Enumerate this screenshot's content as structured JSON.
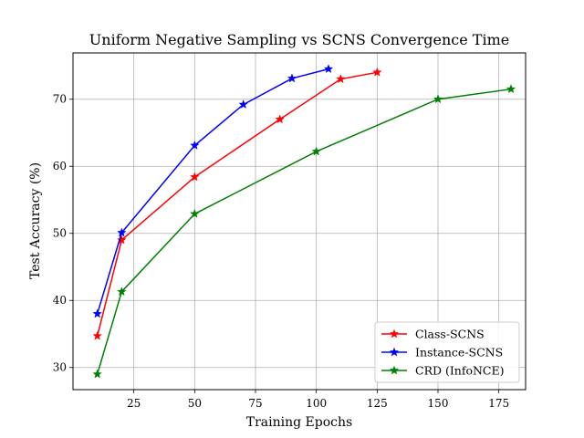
{
  "chart_data": {
    "type": "line",
    "title": "Uniform Negative Sampling vs SCNS Convergence Time",
    "xlabel": "Training Epochs",
    "ylabel": "Test Accuracy (%)",
    "xlim": [
      0,
      186
    ],
    "ylim": [
      26.7,
      76.9
    ],
    "xticks": [
      25,
      50,
      75,
      100,
      125,
      150,
      175
    ],
    "yticks": [
      30,
      40,
      50,
      60,
      70
    ],
    "grid": true,
    "legend_position": "bottom-right",
    "marker": "star",
    "series": [
      {
        "name": "Class-SCNS",
        "color": "#ff0000",
        "points": [
          [
            10,
            34.7
          ],
          [
            20,
            49.0
          ],
          [
            50,
            58.4
          ],
          [
            85,
            67.0
          ],
          [
            110,
            73.0
          ],
          [
            125,
            74.0
          ]
        ]
      },
      {
        "name": "Instance-SCNS",
        "color": "#0000ff",
        "points": [
          [
            10,
            38.0
          ],
          [
            20,
            50.1
          ],
          [
            50,
            63.1
          ],
          [
            70,
            69.2
          ],
          [
            90,
            73.1
          ],
          [
            105,
            74.5
          ]
        ]
      },
      {
        "name": "CRD (InfoNCE)",
        "color": "#008000",
        "points": [
          [
            10,
            29.0
          ],
          [
            20,
            41.3
          ],
          [
            50,
            52.9
          ],
          [
            100,
            62.2
          ],
          [
            150,
            70.0
          ],
          [
            180,
            71.5
          ]
        ]
      }
    ]
  }
}
